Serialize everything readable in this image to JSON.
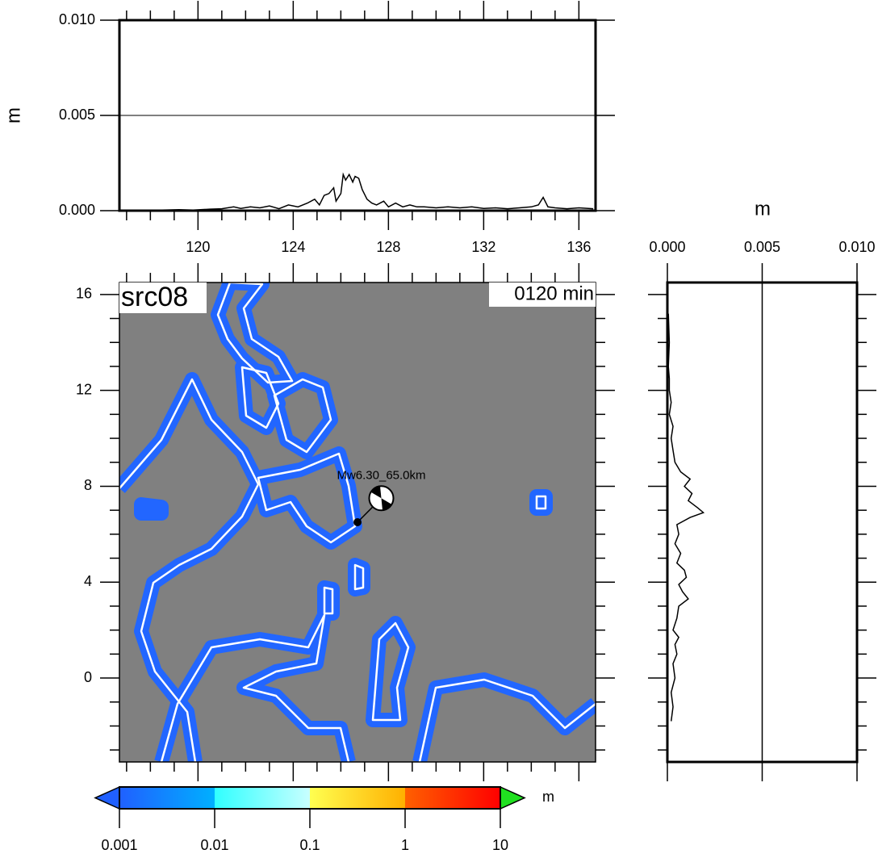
{
  "chart_data": [
    {
      "type": "line",
      "ylabel": "m",
      "xlim": [
        116.7,
        136.7
      ],
      "ylim": [
        0,
        0.01
      ],
      "xticks": [
        120,
        124,
        128,
        132,
        136
      ],
      "xminorticks": [
        117,
        118,
        119,
        121,
        122,
        123,
        125,
        126,
        127,
        129,
        130,
        131,
        133,
        134,
        135
      ],
      "yticks": [
        {
          "value": 0,
          "label": "0.000"
        },
        {
          "value": 0.005,
          "label": "0.005"
        },
        {
          "value": 0.01,
          "label": "0.010"
        }
      ],
      "grid": true,
      "color": "#000000",
      "x": [
        117.8,
        118.5,
        119.2,
        119.8,
        120.5,
        121.0,
        121.5,
        121.8,
        122.2,
        122.6,
        123.0,
        123.4,
        123.8,
        124.2,
        124.6,
        124.9,
        125.1,
        125.3,
        125.5,
        125.7,
        125.8,
        126.0,
        126.1,
        126.2,
        126.35,
        126.5,
        126.6,
        126.75,
        126.9,
        127.1,
        127.3,
        127.5,
        127.8,
        128.0,
        128.3,
        128.6,
        128.9,
        129.2,
        129.5,
        130.0,
        130.5,
        131.0,
        131.5,
        132.0,
        132.5,
        133.0,
        133.5,
        134.0,
        134.3,
        134.5,
        134.7,
        135.0,
        135.5,
        136.0,
        136.6
      ],
      "values": [
        2e-05,
        3e-05,
        5e-05,
        3e-05,
        8e-05,
        0.0001,
        0.0002,
        0.00012,
        0.0002,
        0.00015,
        0.00025,
        0.0001,
        0.0003,
        0.0002,
        0.0004,
        0.0006,
        0.0003,
        0.0008,
        0.0009,
        0.0012,
        0.0005,
        0.0009,
        0.0019,
        0.0016,
        0.0019,
        0.0015,
        0.0018,
        0.0017,
        0.0011,
        0.0006,
        0.0004,
        0.0003,
        0.0005,
        0.0002,
        0.0004,
        0.0002,
        0.0003,
        0.0002,
        0.0002,
        0.00015,
        0.0002,
        0.00015,
        0.0002,
        0.00012,
        0.00015,
        0.0001,
        0.00015,
        0.0002,
        0.0003,
        0.0007,
        0.0002,
        0.00015,
        0.0001,
        0.00015,
        0.0001
      ]
    },
    {
      "type": "map",
      "title": "src08",
      "time_label": "0120 min",
      "event_label": "Mw6.30_65.0km",
      "xlim": [
        116.7,
        136.7
      ],
      "ylim": [
        -3.5,
        16.5
      ],
      "yticks": [
        0,
        4,
        8,
        12,
        16
      ],
      "yminorticks": [
        -3,
        -2,
        -1,
        1,
        2,
        3,
        5,
        6,
        7,
        9,
        10,
        11,
        13,
        14,
        15
      ],
      "epicenter": [
        126.7,
        6.5
      ],
      "mechanism": [
        127.7,
        7.5
      ]
    },
    {
      "type": "profile",
      "xlabel": "m",
      "xlim": [
        0,
        0.01
      ],
      "ylim": [
        -3.5,
        16.5
      ],
      "xticks": [
        {
          "value": 0,
          "label": "0.000"
        },
        {
          "value": 0.005,
          "label": "0.005"
        },
        {
          "value": 0.01,
          "label": "0.010"
        }
      ],
      "grid": true,
      "color": "#000000",
      "y": [
        -1.8,
        -1.2,
        -0.6,
        0,
        0.6,
        1.0,
        1.4,
        1.7,
        2.0,
        2.5,
        3.0,
        3.3,
        3.6,
        3.9,
        4.2,
        4.5,
        4.8,
        5.2,
        5.6,
        6.0,
        6.4,
        6.7,
        6.9,
        7.1,
        7.4,
        7.7,
        8.0,
        8.3,
        8.6,
        9.0,
        9.5,
        10,
        10.5,
        11,
        11.5,
        12,
        12.5,
        13,
        14,
        15.2
      ],
      "values": [
        0.0002,
        0.0003,
        0.0002,
        0.0004,
        0.0003,
        0.0005,
        0.0004,
        0.0006,
        0.0003,
        0.0005,
        0.0006,
        0.0011,
        0.0008,
        0.0006,
        0.001,
        0.0009,
        0.0005,
        0.0007,
        0.0004,
        0.0006,
        0.0005,
        0.0012,
        0.0019,
        0.0016,
        0.0011,
        0.0013,
        0.0009,
        0.0012,
        0.0007,
        0.0004,
        0.0003,
        0.0002,
        0.0003,
        0.0001,
        0.0002,
        0.0001,
        0.0001,
        5e-05,
        0.0001,
        5e-05
      ]
    },
    {
      "type": "colorbar",
      "unit": "m",
      "log": true,
      "xlim": [
        0.001,
        10
      ],
      "xticks": [
        0.001,
        0.01,
        0.1,
        1,
        10
      ],
      "colors": [
        "#2060ff",
        "#00b0ff",
        "#30ffff",
        "#c8ffff",
        "#ffff50",
        "#ffb000",
        "#ff6000",
        "#ff0000"
      ],
      "under_color": "#2060ff",
      "over_color": "#20e020"
    }
  ]
}
